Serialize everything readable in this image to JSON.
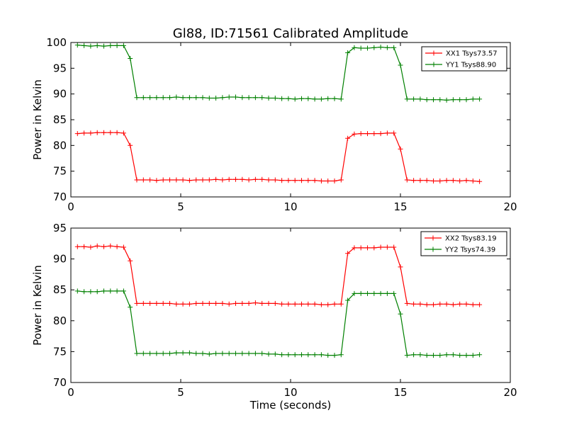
{
  "title": "Gl88, ID:71561 Calibrated Amplitude",
  "chart_data": [
    {
      "type": "line",
      "title": "Gl88, ID:71561 Calibrated Amplitude",
      "xlabel": "",
      "ylabel": "Power in Kelvin",
      "xlim": [
        0,
        20
      ],
      "ylim": [
        70,
        100
      ],
      "xticks": [
        0,
        5,
        10,
        15,
        20
      ],
      "yticks": [
        70,
        75,
        80,
        85,
        90,
        95,
        100
      ],
      "legend": "top-right",
      "x": [
        0.3,
        0.6,
        0.9,
        1.2,
        1.5,
        1.8,
        2.1,
        2.4,
        2.7,
        3.0,
        3.3,
        3.6,
        3.9,
        4.2,
        4.5,
        4.8,
        5.1,
        5.4,
        5.7,
        6.0,
        6.3,
        6.6,
        6.9,
        7.2,
        7.5,
        7.8,
        8.1,
        8.4,
        8.7,
        9.0,
        9.3,
        9.6,
        9.9,
        10.2,
        10.5,
        10.8,
        11.1,
        11.4,
        11.7,
        12.0,
        12.3,
        12.6,
        12.9,
        13.2,
        13.5,
        13.8,
        14.1,
        14.4,
        14.7,
        15.0,
        15.3,
        15.6,
        15.9,
        16.2,
        16.5,
        16.8,
        17.1,
        17.4,
        17.7,
        18.0,
        18.3,
        18.6
      ],
      "series": [
        {
          "name": "XX1 Tsys73.57",
          "color": "#ff0000",
          "values": [
            82.3,
            82.4,
            82.4,
            82.5,
            82.5,
            82.5,
            82.5,
            82.4,
            80.0,
            73.3,
            73.3,
            73.3,
            73.2,
            73.3,
            73.3,
            73.3,
            73.3,
            73.2,
            73.3,
            73.3,
            73.3,
            73.4,
            73.3,
            73.4,
            73.4,
            73.4,
            73.3,
            73.4,
            73.4,
            73.3,
            73.3,
            73.2,
            73.2,
            73.2,
            73.2,
            73.2,
            73.2,
            73.1,
            73.1,
            73.1,
            73.3,
            81.4,
            82.2,
            82.3,
            82.3,
            82.3,
            82.3,
            82.4,
            82.4,
            79.3,
            73.3,
            73.2,
            73.2,
            73.2,
            73.1,
            73.1,
            73.2,
            73.2,
            73.1,
            73.2,
            73.1,
            73.0
          ]
        },
        {
          "name": "YY1 Tsys88.90",
          "color": "#008000",
          "values": [
            99.5,
            99.4,
            99.3,
            99.4,
            99.3,
            99.4,
            99.4,
            99.4,
            96.9,
            89.3,
            89.3,
            89.3,
            89.3,
            89.3,
            89.3,
            89.4,
            89.3,
            89.3,
            89.3,
            89.3,
            89.2,
            89.2,
            89.3,
            89.4,
            89.4,
            89.3,
            89.3,
            89.3,
            89.3,
            89.2,
            89.2,
            89.1,
            89.1,
            89.0,
            89.1,
            89.1,
            89.0,
            89.0,
            89.1,
            89.1,
            89.0,
            98.0,
            99.0,
            98.9,
            98.9,
            99.0,
            99.1,
            99.0,
            99.0,
            95.6,
            89.0,
            89.0,
            89.0,
            88.9,
            88.9,
            88.9,
            88.8,
            88.9,
            88.9,
            88.9,
            89.0,
            89.0
          ]
        }
      ]
    },
    {
      "type": "line",
      "title": "",
      "xlabel": "Time (seconds)",
      "ylabel": "Power in Kelvin",
      "xlim": [
        0,
        20
      ],
      "ylim": [
        70,
        95
      ],
      "xticks": [
        0,
        5,
        10,
        15,
        20
      ],
      "yticks": [
        70,
        75,
        80,
        85,
        90,
        95
      ],
      "legend": "top-right",
      "x": [
        0.3,
        0.6,
        0.9,
        1.2,
        1.5,
        1.8,
        2.1,
        2.4,
        2.7,
        3.0,
        3.3,
        3.6,
        3.9,
        4.2,
        4.5,
        4.8,
        5.1,
        5.4,
        5.7,
        6.0,
        6.3,
        6.6,
        6.9,
        7.2,
        7.5,
        7.8,
        8.1,
        8.4,
        8.7,
        9.0,
        9.3,
        9.6,
        9.9,
        10.2,
        10.5,
        10.8,
        11.1,
        11.4,
        11.7,
        12.0,
        12.3,
        12.6,
        12.9,
        13.2,
        13.5,
        13.8,
        14.1,
        14.4,
        14.7,
        15.0,
        15.3,
        15.6,
        15.9,
        16.2,
        16.5,
        16.8,
        17.1,
        17.4,
        17.7,
        18.0,
        18.3,
        18.6
      ],
      "series": [
        {
          "name": "XX2 Tsys83.19",
          "color": "#ff0000",
          "values": [
            92.0,
            92.0,
            91.9,
            92.1,
            92.0,
            92.1,
            92.0,
            91.9,
            89.7,
            82.8,
            82.8,
            82.8,
            82.8,
            82.8,
            82.8,
            82.7,
            82.7,
            82.7,
            82.8,
            82.8,
            82.8,
            82.8,
            82.8,
            82.7,
            82.8,
            82.8,
            82.8,
            82.9,
            82.8,
            82.8,
            82.8,
            82.7,
            82.7,
            82.7,
            82.7,
            82.7,
            82.7,
            82.6,
            82.6,
            82.7,
            82.7,
            90.9,
            91.8,
            91.8,
            91.8,
            91.8,
            91.9,
            91.9,
            91.9,
            88.7,
            82.8,
            82.7,
            82.7,
            82.6,
            82.6,
            82.7,
            82.7,
            82.6,
            82.7,
            82.7,
            82.6,
            82.6
          ]
        },
        {
          "name": "YY2 Tsys74.39",
          "color": "#008000",
          "values": [
            84.8,
            84.7,
            84.7,
            84.7,
            84.8,
            84.8,
            84.8,
            84.8,
            82.2,
            74.7,
            74.7,
            74.7,
            74.7,
            74.7,
            74.7,
            74.8,
            74.8,
            74.8,
            74.7,
            74.7,
            74.6,
            74.7,
            74.7,
            74.7,
            74.7,
            74.7,
            74.7,
            74.7,
            74.7,
            74.6,
            74.6,
            74.5,
            74.5,
            74.5,
            74.5,
            74.5,
            74.5,
            74.5,
            74.4,
            74.4,
            74.5,
            83.3,
            84.4,
            84.4,
            84.4,
            84.4,
            84.4,
            84.4,
            84.4,
            81.1,
            74.4,
            74.5,
            74.5,
            74.4,
            74.4,
            74.4,
            74.5,
            74.5,
            74.4,
            74.4,
            74.4,
            74.5
          ]
        }
      ]
    }
  ]
}
